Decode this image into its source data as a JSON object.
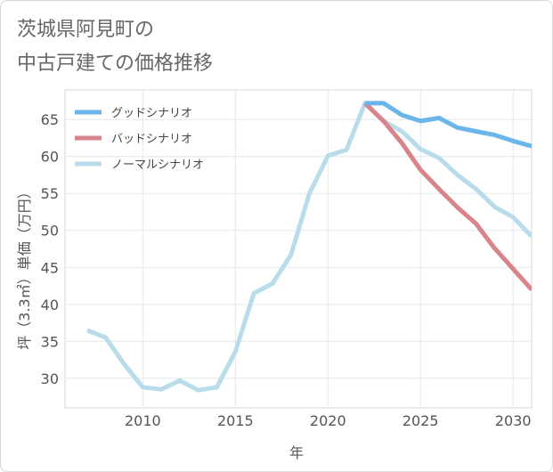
{
  "header": {
    "title_line1": "茨城県阿見町の",
    "title_line2": "中古戸建ての価格推移"
  },
  "chart_data": {
    "type": "line",
    "title": "茨城県阿見町の中古戸建ての価格推移",
    "xlabel": "年",
    "ylabel": "坪（3.3㎡）単価（万円）",
    "xlim": [
      2005.8,
      2031
    ],
    "ylim": [
      26,
      69
    ],
    "xticks": [
      2010,
      2015,
      2020,
      2025,
      2030
    ],
    "yticks": [
      30,
      35,
      40,
      45,
      50,
      55,
      60,
      65
    ],
    "grid": true,
    "legend_position": "top-left",
    "series": [
      {
        "name": "グッドシナリオ",
        "color": "#6ab5ea",
        "x": [
          2022,
          2023,
          2024,
          2025,
          2026,
          2027,
          2028,
          2029,
          2030,
          2031
        ],
        "y": [
          67.2,
          67.2,
          65.6,
          64.8,
          65.2,
          63.9,
          63.4,
          62.9,
          62.1,
          61.4
        ]
      },
      {
        "name": "バッドシナリオ",
        "color": "#d9838a",
        "x": [
          2022,
          2023,
          2024,
          2025,
          2026,
          2027,
          2028,
          2029,
          2030,
          2031
        ],
        "y": [
          67.2,
          64.8,
          61.8,
          58.2,
          55.6,
          53.1,
          50.9,
          47.6,
          44.8,
          42.0
        ]
      },
      {
        "name": "ノーマルシナリオ",
        "color": "#b9dcea",
        "x": [
          2007,
          2008,
          2009,
          2010,
          2011,
          2012,
          2013,
          2014,
          2015,
          2016,
          2017,
          2018,
          2019,
          2020,
          2021,
          2022,
          2023,
          2024,
          2025,
          2026,
          2027,
          2028,
          2029,
          2030,
          2031
        ],
        "y": [
          36.5,
          35.5,
          31.9,
          28.8,
          28.5,
          29.7,
          28.4,
          28.8,
          33.6,
          41.5,
          42.8,
          46.7,
          55.0,
          60.1,
          60.9,
          67.2,
          64.8,
          63.4,
          61.0,
          59.8,
          57.5,
          55.6,
          53.2,
          51.8,
          49.2
        ]
      }
    ]
  }
}
